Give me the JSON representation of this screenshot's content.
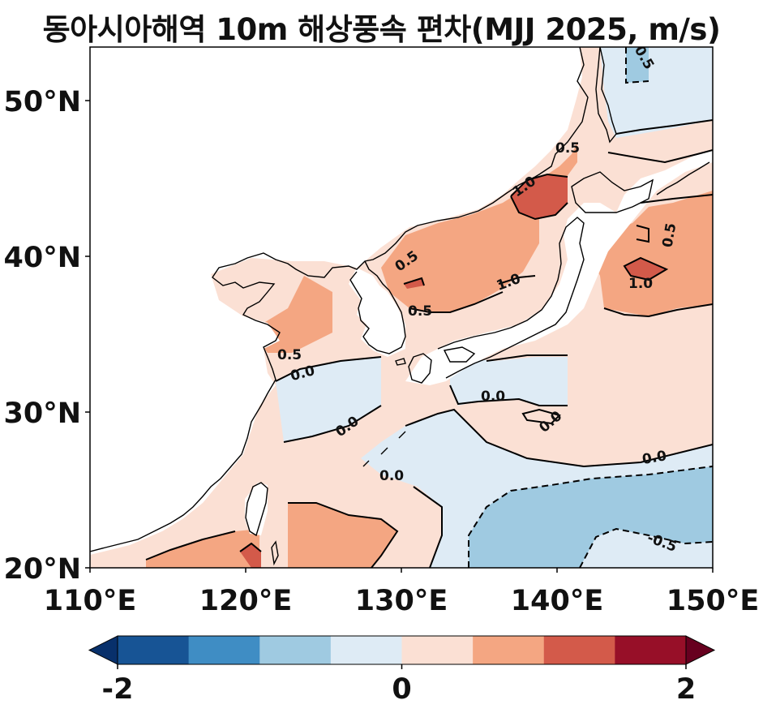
{
  "title": "동아시아해역 10m 해상풍속 편차(MJJ 2025, m/s)",
  "map": {
    "lon_range": [
      110,
      150
    ],
    "lat_range": [
      20,
      53
    ],
    "x_ticks": [
      "110°E",
      "120°E",
      "130°E",
      "140°E",
      "150°E"
    ],
    "y_ticks": [
      "20°N",
      "30°N",
      "40°N",
      "50°N"
    ],
    "contour_labels": [
      "0.5",
      "0.5",
      "1.0",
      "0.5",
      "0.5",
      "1.0",
      "1.0",
      "0.5",
      "0.5",
      "0.0",
      "0.0",
      "0.0",
      "0.0",
      "0.0",
      "0.0",
      "-0.5"
    ]
  },
  "colorbar": {
    "levels": [
      -2,
      -1.5,
      -1,
      -0.5,
      0,
      0.5,
      1,
      1.5,
      2
    ],
    "colors": [
      "#08306b",
      "#175495",
      "#3f8dc4",
      "#9fcae1",
      "#deebf5",
      "#fbe0d4",
      "#f4a682",
      "#d35a4a",
      "#970f28",
      "#67001f"
    ],
    "tick_labels": [
      "-2",
      "0",
      "2"
    ],
    "extend": "both"
  }
}
